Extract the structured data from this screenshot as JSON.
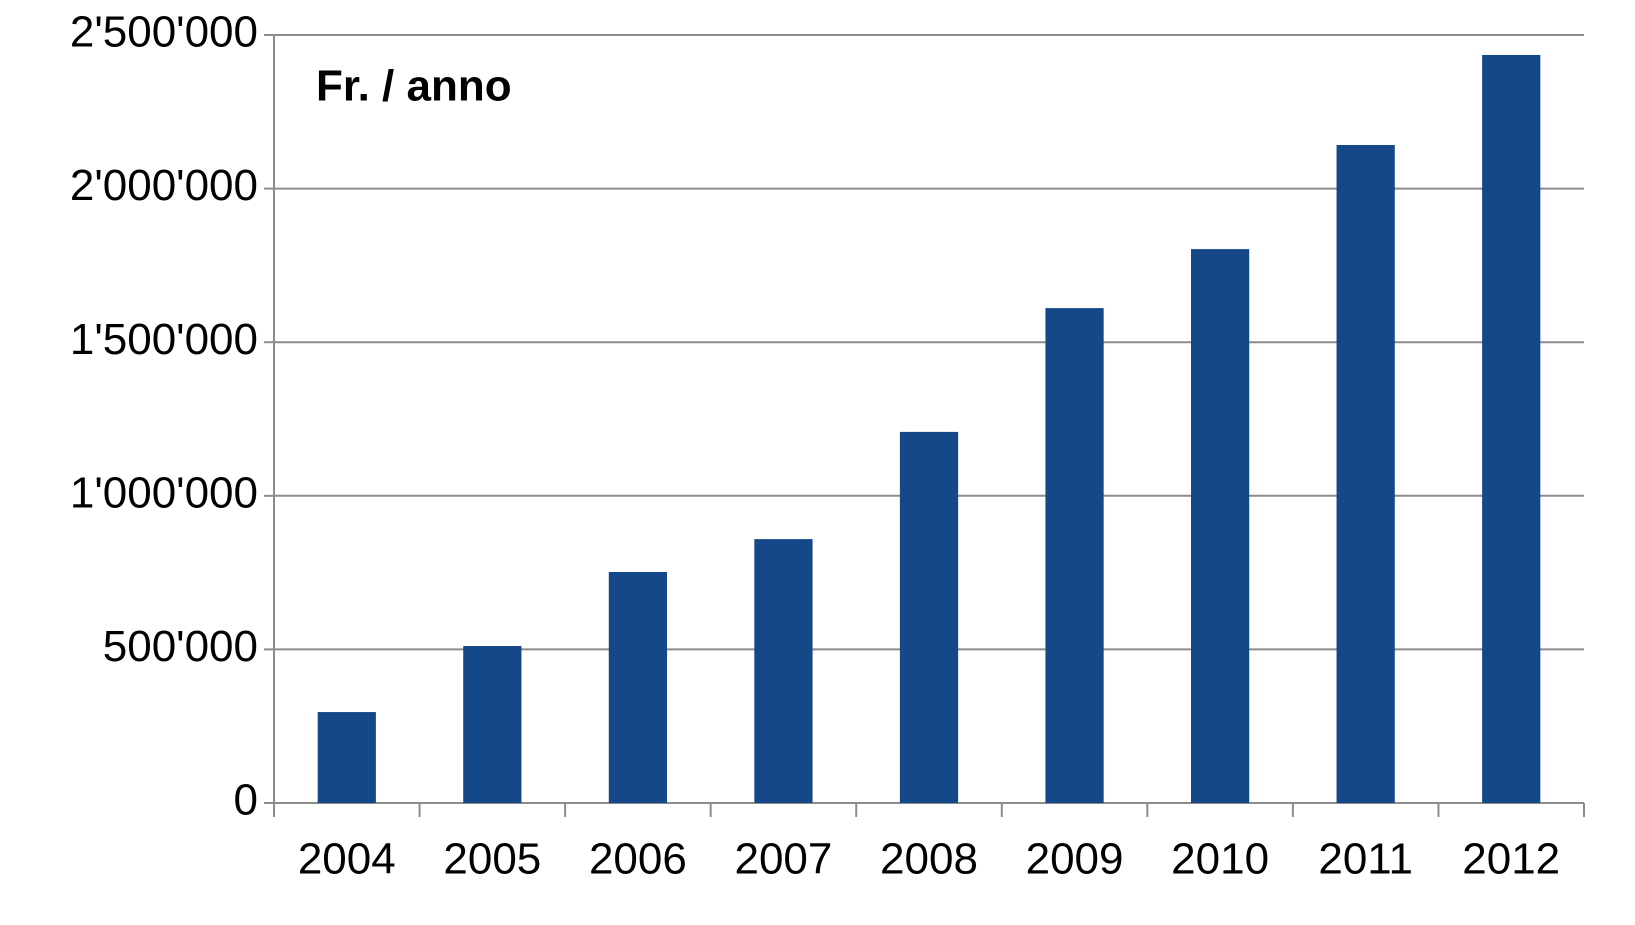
{
  "chart_data": {
    "type": "bar",
    "annotation": "Fr. / anno",
    "categories": [
      "2004",
      "2005",
      "2006",
      "2007",
      "2008",
      "2009",
      "2010",
      "2011",
      "2012"
    ],
    "values": [
      296000,
      511000,
      752000,
      859000,
      1208000,
      1611000,
      1803000,
      2142000,
      2435000
    ],
    "color": "#154889",
    "ylim": [
      0,
      2500000
    ],
    "yticks": [
      0,
      {
        "value": 500000,
        "label": "500'000"
      },
      {
        "value": 1000000,
        "label": "1'000'000"
      },
      {
        "value": 1500000,
        "label": "1'500'000"
      },
      {
        "value": 2000000,
        "label": "2'000'000"
      },
      {
        "value": 2500000,
        "label": "2'500'000"
      }
    ],
    "grid": true
  }
}
